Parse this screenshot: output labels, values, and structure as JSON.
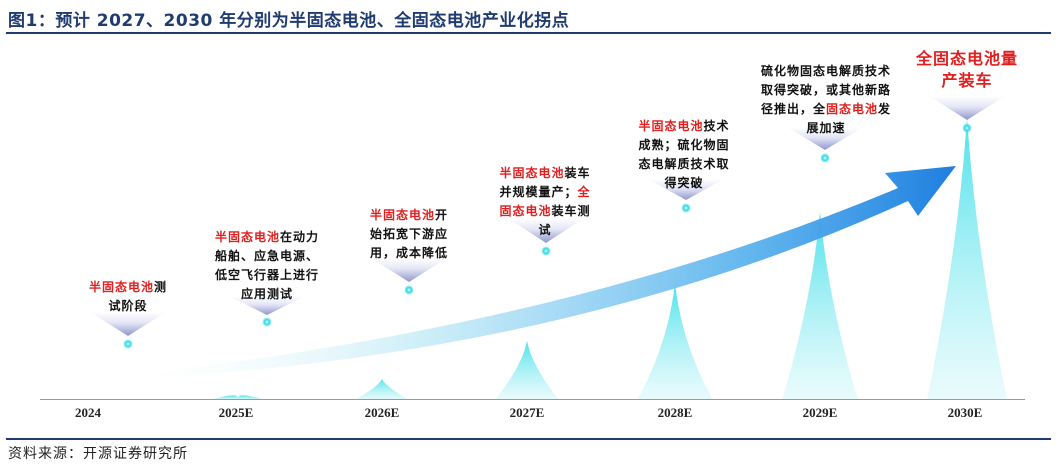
{
  "title": "图1：预计 2027、2030 年分别为半固态电池、全固态电池产业化拐点",
  "source": "资料来源：开源证券研究所",
  "colors": {
    "accent_red": "#e02020",
    "title_blue": "#1f3b70",
    "peak_cyan": "#44e0ea",
    "arrow_blue": "#2a88e0"
  },
  "years": [
    {
      "label": "2024",
      "note": [
        [
          {
            "t": "半固态电池",
            "red": true
          },
          {
            "t": "测"
          }
        ],
        [
          {
            "t": "试阶段"
          }
        ]
      ]
    },
    {
      "label": "2025E",
      "note": [
        [
          {
            "t": "半固态电池",
            "red": true
          },
          {
            "t": "在动力"
          }
        ],
        [
          {
            "t": "船舶、应急电源、"
          }
        ],
        [
          {
            "t": "低空飞行器上进行"
          }
        ],
        [
          {
            "t": "应用测试"
          }
        ]
      ]
    },
    {
      "label": "2026E",
      "note": [
        [
          {
            "t": "半固态电池",
            "red": true
          },
          {
            "t": "开"
          }
        ],
        [
          {
            "t": "始拓宽下游应"
          }
        ],
        [
          {
            "t": "用，成本降低"
          }
        ]
      ]
    },
    {
      "label": "2027E",
      "note": [
        [
          {
            "t": "半固态电池",
            "red": true
          },
          {
            "t": "装车"
          }
        ],
        [
          {
            "t": "并规模量产；"
          },
          {
            "t": "全",
            "red": true
          }
        ],
        [
          {
            "t": "固态电池",
            "red": true
          },
          {
            "t": "装车测"
          }
        ],
        [
          {
            "t": "试"
          }
        ]
      ]
    },
    {
      "label": "2028E",
      "note": [
        [
          {
            "t": "半固态电池",
            "red": true
          },
          {
            "t": "技术"
          }
        ],
        [
          {
            "t": "成熟；硫化物固"
          }
        ],
        [
          {
            "t": "态电解质技术取"
          }
        ],
        [
          {
            "t": "得突破"
          }
        ]
      ]
    },
    {
      "label": "2029E",
      "note": [
        [
          {
            "t": "硫化物固态电解质技术"
          }
        ],
        [
          {
            "t": "取得突破，或其他新路"
          }
        ],
        [
          {
            "t": "径推出，全"
          },
          {
            "t": "固态电池",
            "red": true
          },
          {
            "t": "发"
          }
        ],
        [
          {
            "t": "展加速"
          }
        ]
      ]
    },
    {
      "label": "2030E",
      "note": [
        [
          {
            "t": "全固态电池量",
            "red": true
          }
        ],
        [
          {
            "t": "产装车",
            "red": true
          }
        ]
      ]
    }
  ]
}
